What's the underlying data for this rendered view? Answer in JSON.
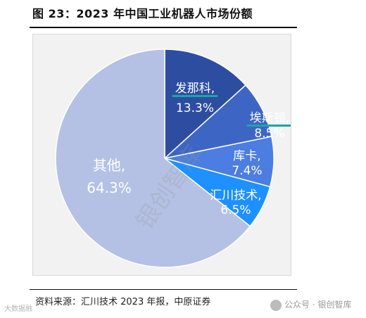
{
  "figure_title": "图 23：2023 年中国工业机器人市场份额",
  "source_note": "资料来源：汇川技术 2023 年报，中原证券",
  "watermark_left": "大数据融",
  "watermark_right": "公众号 · 银创智库",
  "watermark_diagonal": "银创智库",
  "colors": {
    "slice_0": "#2d4ea0",
    "slice_1": "#3d66c4",
    "slice_2": "#4c7de0",
    "slice_3": "#1e90ff",
    "slice_4": "#b4c1e4",
    "label_underline": "#1ba6a6"
  },
  "chart_data": {
    "type": "pie",
    "title": "",
    "categories": [
      "发那科",
      "埃斯顿",
      "库卡",
      "汇川技术",
      "其他"
    ],
    "values": [
      13.3,
      8.5,
      7.4,
      6.5,
      64.3
    ],
    "unit": "%",
    "data_labels": [
      {
        "name": "发那科,",
        "value": "13.3%"
      },
      {
        "name": "埃斯顿,",
        "value": "8.5%"
      },
      {
        "name": "库卡,",
        "value": "7.4%"
      },
      {
        "name": "汇川技术,",
        "value": "6.5%"
      },
      {
        "name": "其他,",
        "value": "64.3%"
      }
    ],
    "legend": "none",
    "start_angle_deg": 0,
    "direction": "clockwise"
  }
}
